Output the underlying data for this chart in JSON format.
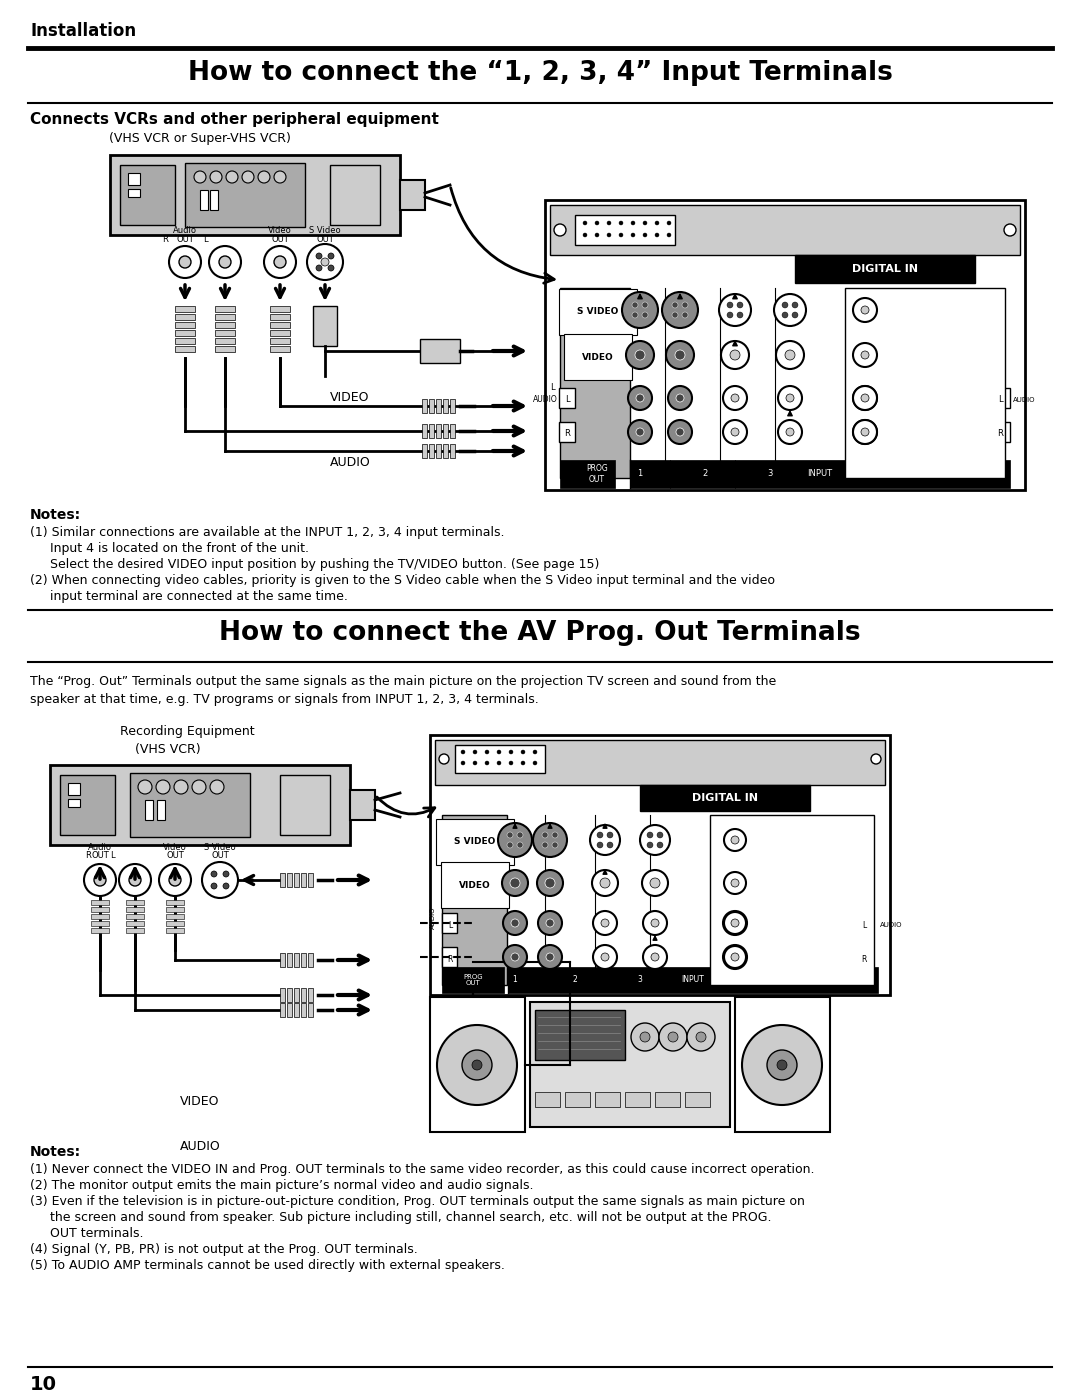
{
  "page_width": 10.8,
  "page_height": 13.97,
  "bg_color": "#ffffff",
  "top_label": "Installation",
  "title1": "How to connect the “1, 2, 3, 4” Input Terminals",
  "subtitle1": "Connects VCRs and other peripheral equipment",
  "vcr_label1": "(VHS VCR or Super-VHS VCR)",
  "notes1_title": "Notes:",
  "notes1_lines": [
    "(1) Similar connections are available at the INPUT 1, 2, 3, 4 input terminals.",
    "     Input 4 is located on the front of the unit.",
    "     Select the desired VIDEO input position by pushing the TV/VIDEO button. (See page 15)",
    "(2) When connecting video cables, priority is given to the S Video cable when the S Video input terminal and the video",
    "     input terminal are connected at the same time."
  ],
  "title2": "How to connect the AV Prog. Out Terminals",
  "desc2_lines": [
    "The “Prog. Out” Terminals output the same signals as the main picture on the projection TV screen and sound from the",
    "speaker at that time, e.g. TV programs or signals from INPUT 1, 2, 3, 4 terminals."
  ],
  "rec_label": "Recording Equipment",
  "vcr_label2": "(VHS VCR)",
  "notes2_title": "Notes:",
  "notes2_lines": [
    "(1) Never connect the VIDEO IN and Prog. OUT terminals to the same video recorder, as this could cause incorrect operation.",
    "(2) The monitor output emits the main picture’s normal video and audio signals.",
    "(3) Even if the television is in picture-out-picture condition, Prog. OUT terminals output the same signals as main picture on",
    "     the screen and sound from speaker. Sub picture including still, channel search, etc. will not be output at the PROG.",
    "     OUT terminals.",
    "(4) Signal (Y, PB, PR) is not output at the Prog. OUT terminals.",
    "(5) To AUDIO AMP terminals cannot be used directly with external speakers."
  ],
  "page_num": "10"
}
